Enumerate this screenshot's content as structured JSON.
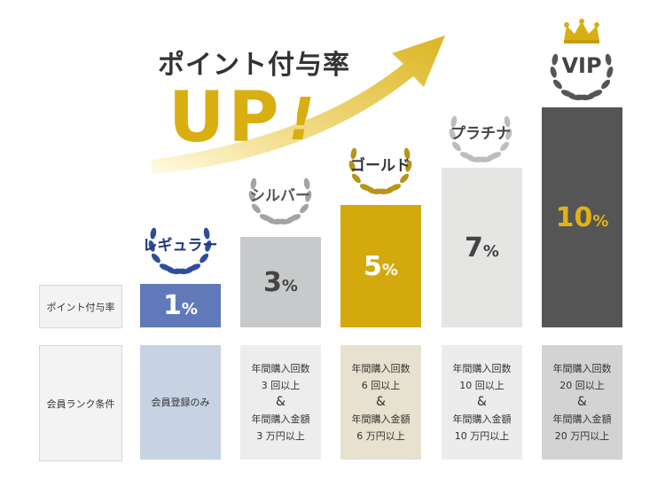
{
  "headline": "ポイント付与率",
  "up_text": "UP",
  "up_exclaim": "!",
  "row_labels": {
    "rate": "ポイント付与率",
    "condition": "会員ランク条件"
  },
  "ranks": [
    {
      "name": "レギュラー",
      "rate": "1",
      "unit": "%",
      "bar_color": "#6079b8",
      "wreath_color": "#2e4e9a",
      "cond_bg": "#c7d3e2",
      "condition": {
        "single": "会員登録のみ"
      }
    },
    {
      "name": "シルバー",
      "rate": "3",
      "unit": "%",
      "bar_color": "#c8c9ca",
      "wreath_color": "#a3a3a3",
      "cond_bg": "#ededed",
      "condition": {
        "line1": "年間購入回数",
        "line2": "3 回以上",
        "amp": "&",
        "line3": "年間購入金額",
        "line4": "3 万円以上"
      }
    },
    {
      "name": "ゴールド",
      "rate": "5",
      "unit": "%",
      "bar_color": "#d3a90e",
      "wreath_color": "#b89417",
      "cond_bg": "#e6e2cf",
      "condition": {
        "line1": "年間購入回数",
        "line2": "6 回以上",
        "amp": "&",
        "line3": "年間購入金額",
        "line4": "6 万円以上"
      }
    },
    {
      "name": "プラチナ",
      "rate": "7",
      "unit": "%",
      "bar_color": "#e5e5e4",
      "wreath_color": "#bdbdbd",
      "cond_bg": "#ececec",
      "condition": {
        "line1": "年間購入回数",
        "line2": "10 回以上",
        "amp": "&",
        "line3": "年間購入金額",
        "line4": "10 万円以上"
      }
    },
    {
      "name": "VIP",
      "rate": "10",
      "unit": "%",
      "bar_color": "#555555",
      "wreath_color": "#555555",
      "cond_bg": "#d4d3d3",
      "condition": {
        "line1": "年間購入回数",
        "line2": "20 回以上",
        "amp": "&",
        "line3": "年間購入金額",
        "line4": "20 万円以上"
      }
    }
  ],
  "accent_gold": "#d8ae12",
  "icons": [
    "rising-arrow-icon",
    "laurel-wreath-icon",
    "crown-icon"
  ]
}
